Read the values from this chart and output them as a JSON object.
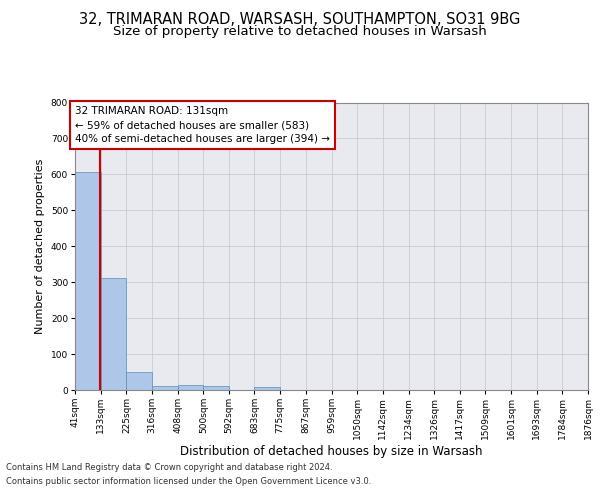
{
  "title_line1": "32, TRIMARAN ROAD, WARSASH, SOUTHAMPTON, SO31 9BG",
  "title_line2": "Size of property relative to detached houses in Warsash",
  "xlabel": "Distribution of detached houses by size in Warsash",
  "ylabel": "Number of detached properties",
  "footer_line1": "Contains HM Land Registry data © Crown copyright and database right 2024.",
  "footer_line2": "Contains public sector information licensed under the Open Government Licence v3.0.",
  "annotation_line1": "32 TRIMARAN ROAD: 131sqm",
  "annotation_line2": "← 59% of detached houses are smaller (583)",
  "annotation_line3": "40% of semi-detached houses are larger (394) →",
  "property_size": 131,
  "bar_edges": [
    41,
    133,
    225,
    316,
    408,
    500,
    592,
    683,
    775,
    867,
    959,
    1050,
    1142,
    1234,
    1326,
    1417,
    1509,
    1601,
    1693,
    1784,
    1876
  ],
  "bar_heights": [
    607,
    311,
    50,
    11,
    14,
    12,
    0,
    8,
    0,
    0,
    0,
    0,
    0,
    0,
    0,
    0,
    0,
    0,
    0,
    0
  ],
  "bar_color": "#aec6e8",
  "bar_edge_color": "#5b8db8",
  "vline_color": "#cc0000",
  "vline_x": 131,
  "ylim": [
    0,
    800
  ],
  "yticks": [
    0,
    100,
    200,
    300,
    400,
    500,
    600,
    700,
    800
  ],
  "grid_color": "#c8ccd8",
  "bg_color": "#e8eaf0",
  "fig_bg_color": "#ffffff",
  "annotation_box_color": "#ffffff",
  "annotation_box_edge": "#cc0000",
  "title_fontsize": 10.5,
  "subtitle_fontsize": 9.5,
  "ylabel_fontsize": 8,
  "xlabel_fontsize": 8.5,
  "tick_fontsize": 6.5,
  "footer_fontsize": 6.0,
  "annotation_fontsize": 7.5
}
